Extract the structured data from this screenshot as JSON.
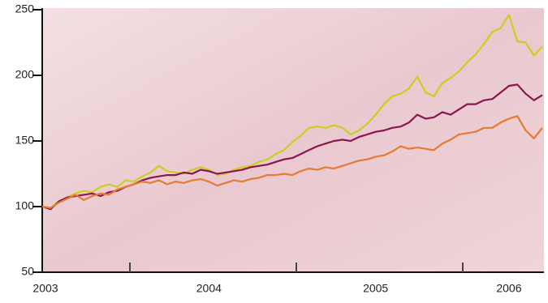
{
  "chart_data": {
    "type": "line",
    "categories": [
      "2003",
      null,
      null,
      null,
      null,
      null,
      null,
      null,
      null,
      null,
      null,
      null,
      null,
      null,
      null,
      null,
      null,
      null,
      null,
      null,
      "2004",
      null,
      null,
      null,
      null,
      null,
      null,
      null,
      null,
      null,
      null,
      null,
      null,
      null,
      null,
      null,
      null,
      null,
      null,
      null,
      "2005",
      null,
      null,
      null,
      null,
      null,
      null,
      null,
      null,
      null,
      null,
      null,
      null,
      null,
      null,
      null,
      "2006",
      null,
      null,
      null,
      null
    ],
    "series": [
      {
        "color": "#c9cf1f",
        "values": [
          100,
          99,
          104,
          107,
          110,
          112,
          111,
          115,
          117,
          115,
          120,
          119,
          123,
          126,
          131,
          127,
          126,
          125,
          128,
          130,
          128,
          124,
          125,
          128,
          130,
          131,
          134,
          136,
          140,
          143,
          149,
          154,
          160,
          161,
          160,
          162,
          160,
          155,
          158,
          163,
          170,
          178,
          184,
          186,
          190,
          199,
          187,
          184,
          194,
          198,
          203,
          210,
          216,
          224,
          233,
          236,
          246,
          226,
          225,
          215,
          222
        ]
      },
      {
        "color": "#8c1550",
        "values": [
          100,
          98,
          104,
          107,
          108,
          109,
          110,
          108,
          111,
          112,
          115,
          117,
          120,
          122,
          123,
          124,
          124,
          126,
          125,
          128,
          127,
          125,
          126,
          127,
          128,
          130,
          131,
          132,
          134,
          136,
          137,
          140,
          143,
          146,
          148,
          150,
          151,
          150,
          153,
          155,
          157,
          158,
          160,
          161,
          164,
          170,
          167,
          168,
          172,
          170,
          174,
          178,
          178,
          181,
          182,
          187,
          192,
          193,
          186,
          181,
          185
        ]
      },
      {
        "color": "#e57a30",
        "values": [
          100,
          99,
          103,
          106,
          109,
          105,
          108,
          110,
          109,
          113,
          115,
          117,
          119,
          118,
          120,
          117,
          119,
          118,
          120,
          121,
          119,
          116,
          118,
          120,
          119,
          121,
          122,
          124,
          124,
          125,
          124,
          127,
          129,
          128,
          130,
          129,
          131,
          133,
          135,
          136,
          138,
          139,
          142,
          146,
          144,
          145,
          144,
          143,
          148,
          151,
          155,
          156,
          157,
          160,
          160,
          164,
          167,
          169,
          158,
          152,
          160
        ]
      }
    ],
    "ylim": [
      50,
      250
    ],
    "yticks": [
      50,
      100,
      150,
      200,
      250
    ]
  }
}
